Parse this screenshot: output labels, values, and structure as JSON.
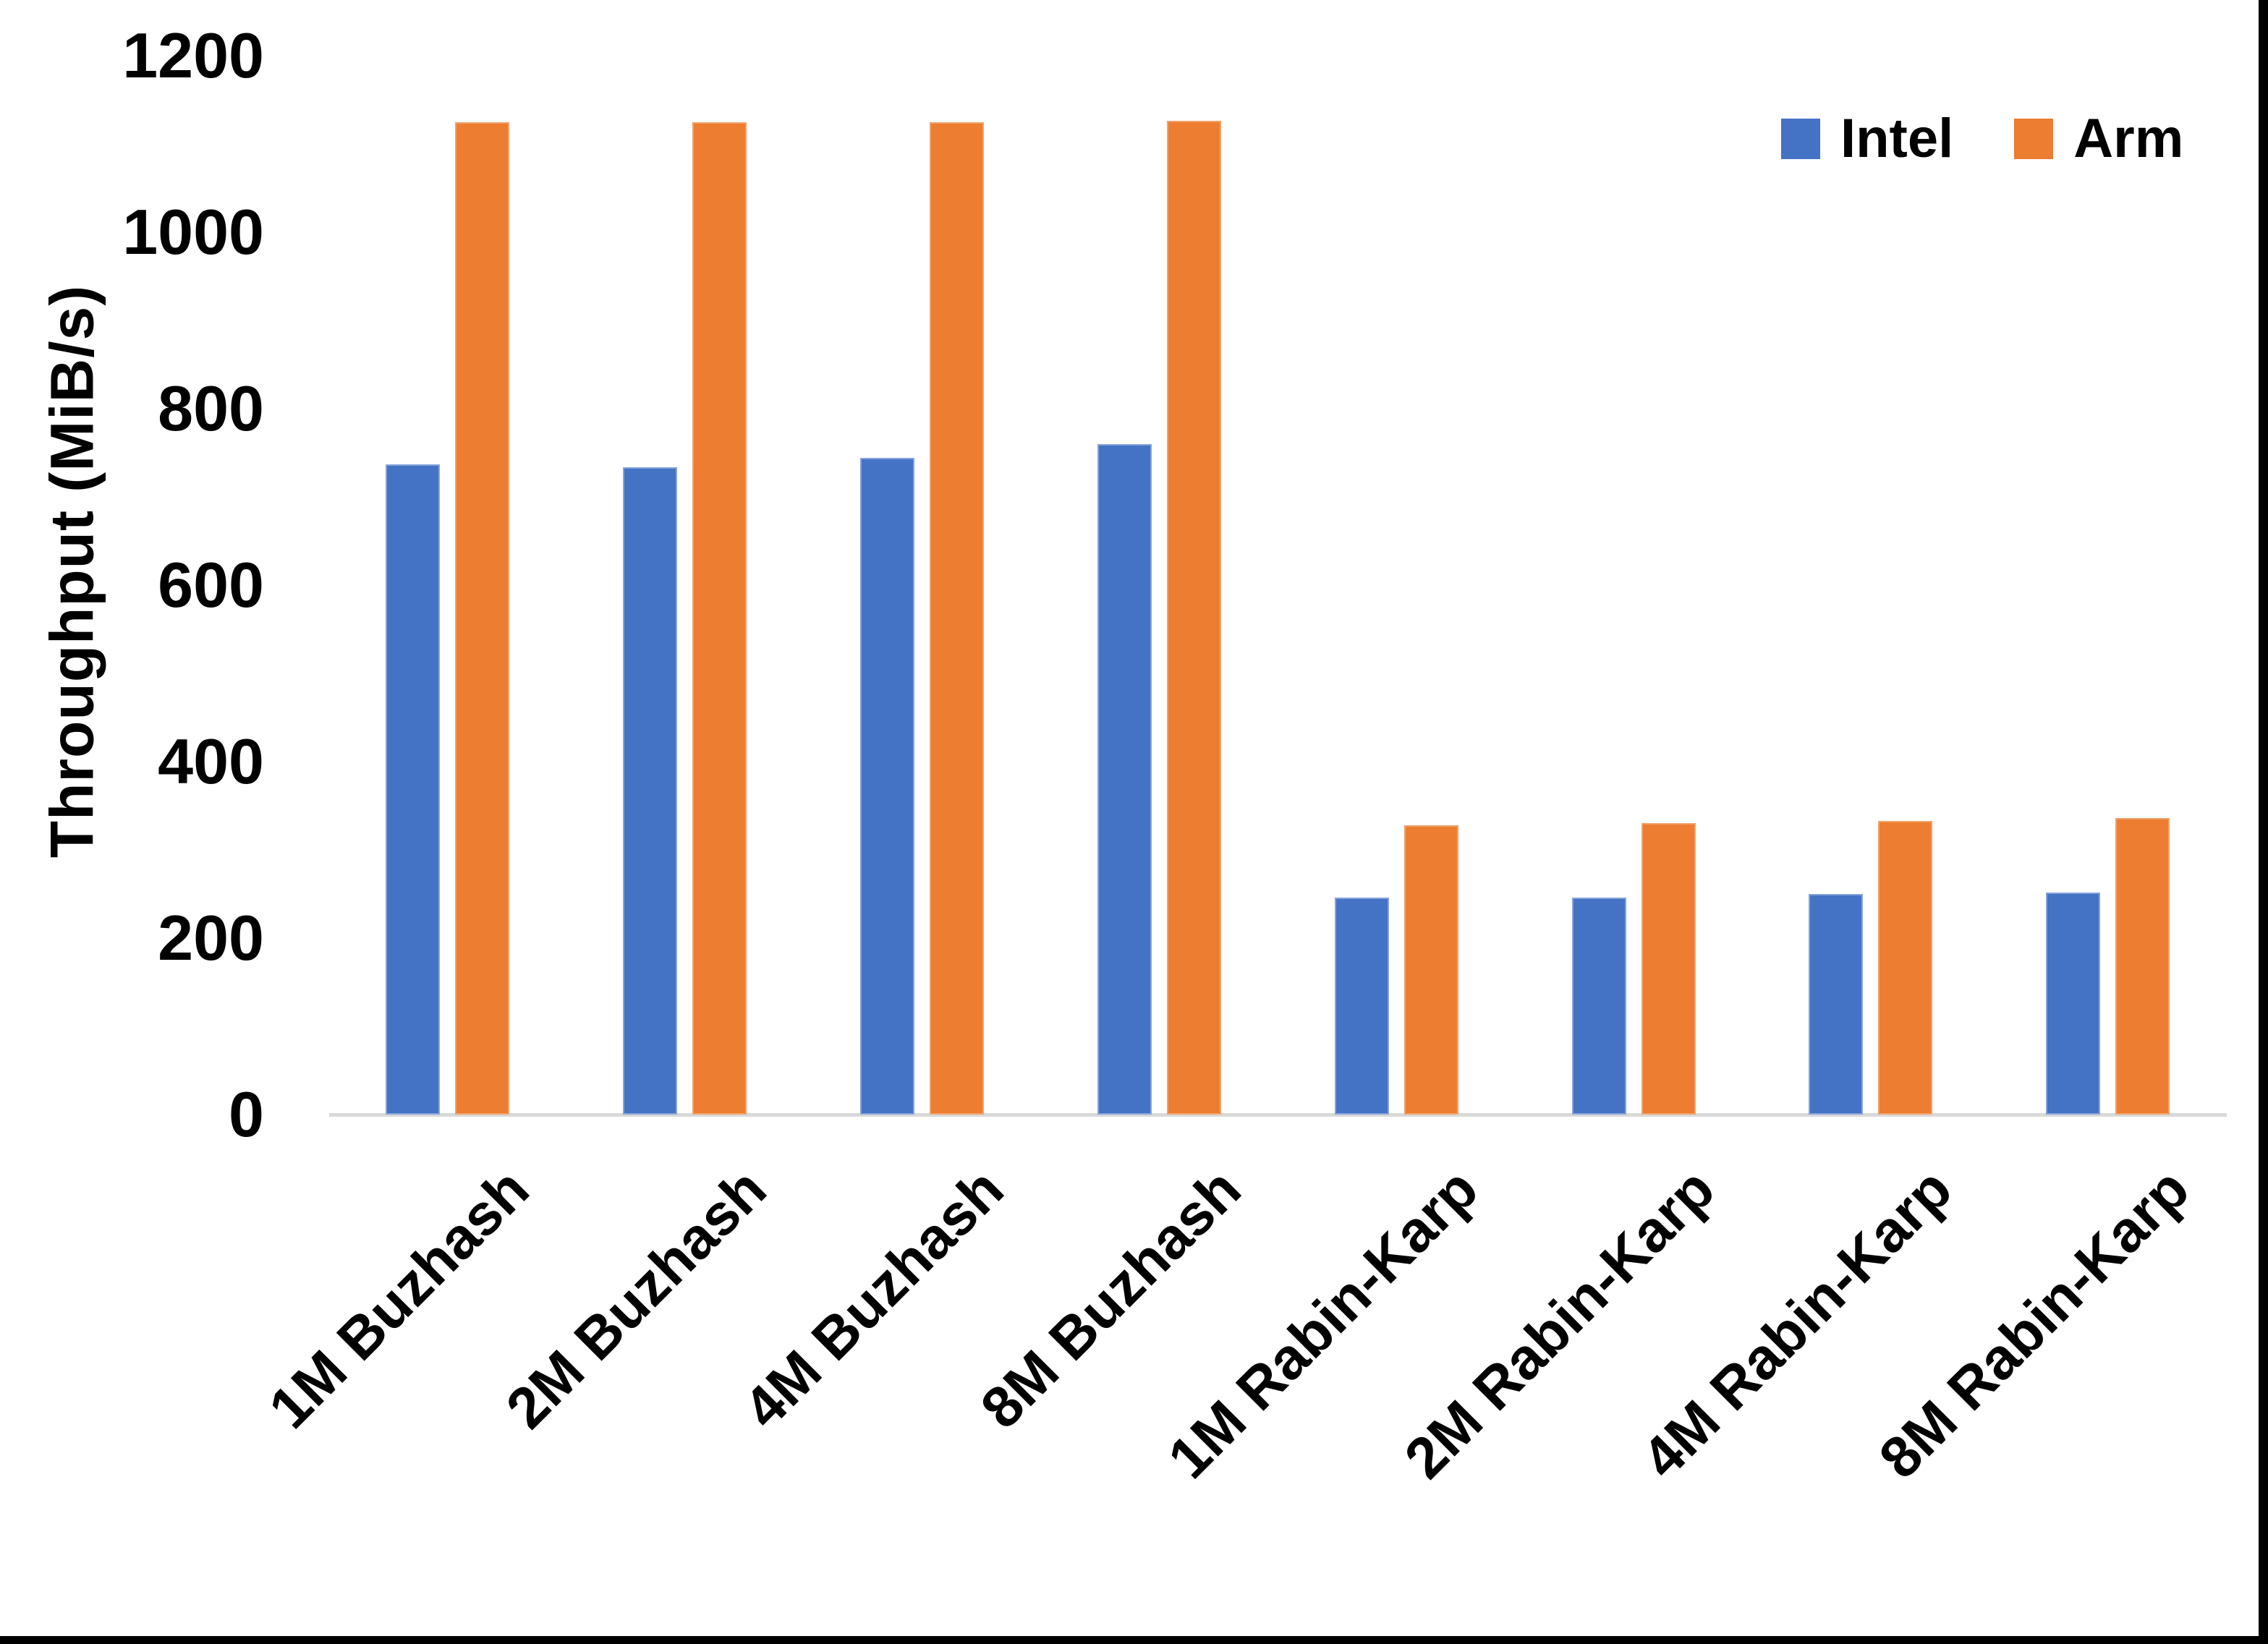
{
  "chart_data": {
    "type": "bar",
    "title": "",
    "xlabel": "",
    "ylabel": "Throughput (MiB/s)",
    "ylim": [
      0,
      1200
    ],
    "yticks": [
      0,
      200,
      400,
      600,
      800,
      1000,
      1200
    ],
    "grid": false,
    "legend_position": "top-right",
    "categories": [
      "1M Buzhash",
      "2M Buzhash",
      "4M Buzhash",
      "8M Buzhash",
      "1M Rabin-Karp",
      "2M Rabin-Karp",
      "4M Rabin-Karp",
      "8M Rabin-Karp"
    ],
    "series": [
      {
        "name": "Intel",
        "color": "#4472C4",
        "values": [
          737,
          734,
          744,
          760,
          246,
          246,
          250,
          252
        ]
      },
      {
        "name": "Arm",
        "color": "#ED7D31",
        "values": [
          1125,
          1125,
          1125,
          1126,
          328,
          330,
          333,
          336
        ]
      }
    ],
    "axis_line_color": "#d9d9d9",
    "text_color": "#000000"
  }
}
